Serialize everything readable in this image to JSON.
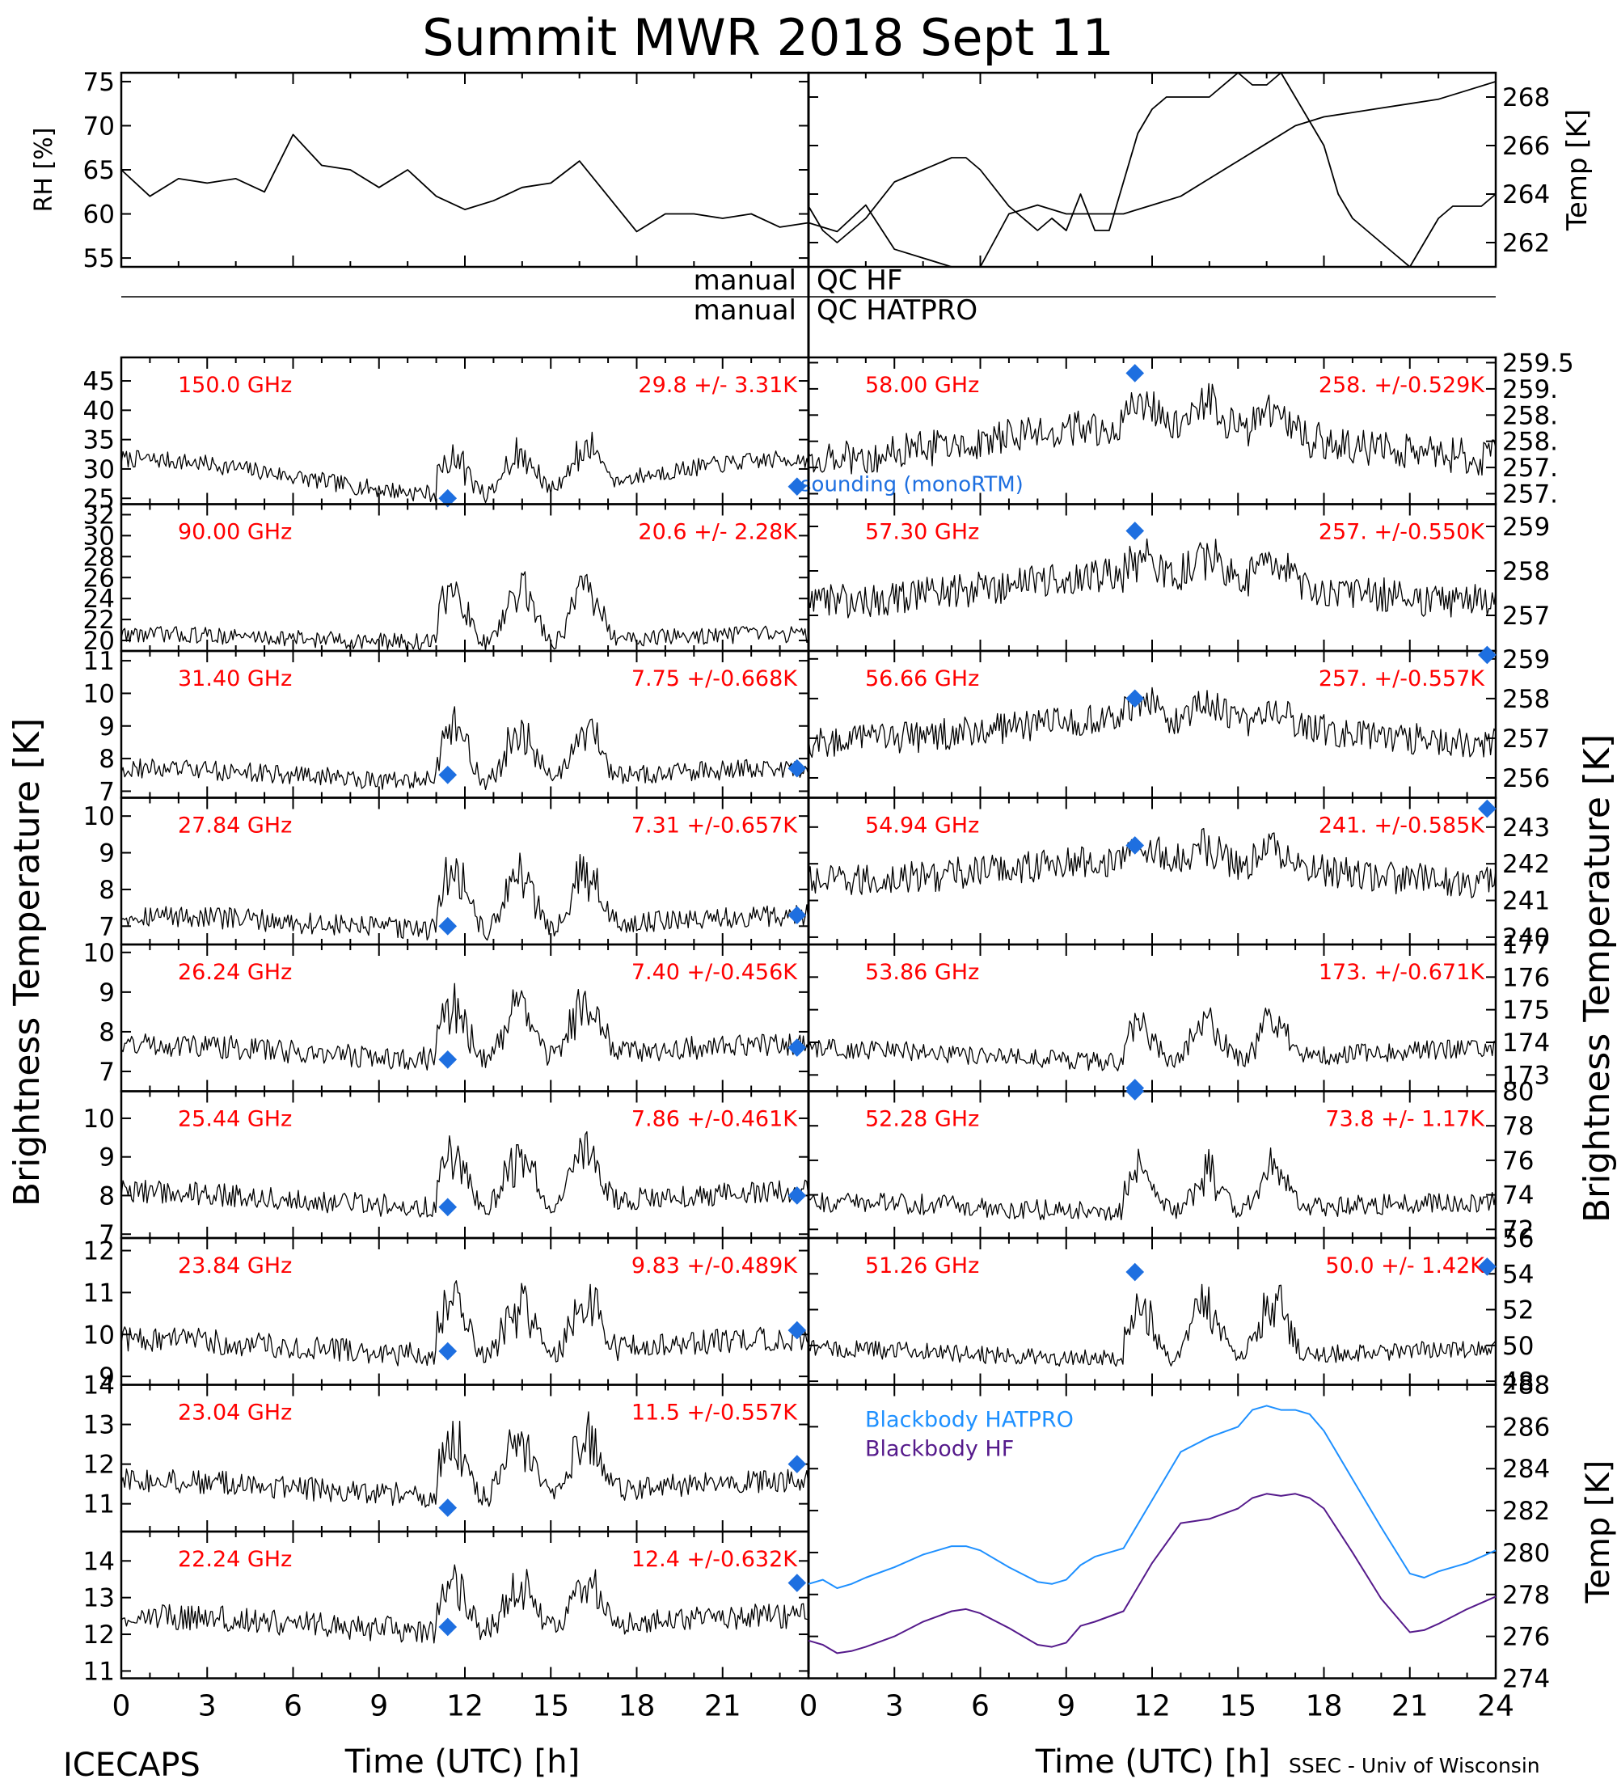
{
  "title": "Summit MWR 2018 Sept 11",
  "footer": {
    "left": "ICECAPS",
    "right": "SSEC - Univ of Wisconsin"
  },
  "x_axis": {
    "label": "Time (UTC) [h]",
    "ticks_left": [
      "0",
      "3",
      "6",
      "9",
      "12",
      "15",
      "18",
      "21"
    ],
    "ticks_right": [
      "0",
      "3",
      "6",
      "9",
      "12",
      "15",
      "18",
      "21",
      "24"
    ]
  },
  "y_label_left": "Brightness Temperature [K]",
  "y_label_right": "Brightness Temperature [K]",
  "qc": {
    "row1_left": "manual",
    "row1_right": "QC HF",
    "row2_left": "manual",
    "row2_right": "QC HATPRO"
  },
  "colors": {
    "data": "#000000",
    "label": "#ff0000",
    "sonde": "#1e6fe0",
    "hatpro": "#1e90ff",
    "hf": "#551a8b"
  },
  "chart_data": [
    {
      "type": "line",
      "panel": "rh",
      "ylabel": "RH [%]",
      "ylim": [
        54,
        76
      ],
      "yticks": [
        55,
        60,
        65,
        70,
        75
      ],
      "xlim": [
        0,
        12
      ],
      "x": [
        0,
        0.5,
        1,
        1.5,
        2,
        2.5,
        3,
        3.5,
        4,
        4.5,
        5,
        5.5,
        6,
        6.5,
        7,
        7.5,
        8,
        8.5,
        9,
        9.5,
        10,
        10.5,
        11,
        11.5,
        12
      ],
      "y": [
        65,
        62,
        64,
        63.5,
        64,
        62.5,
        69,
        65.5,
        65,
        63,
        65,
        62,
        60.5,
        61.5,
        63,
        63.5,
        66,
        62,
        58,
        60,
        60,
        59.5,
        60,
        58.5,
        59
      ]
    },
    {
      "type": "line",
      "panel": "rh",
      "ylabel": "RH [%]",
      "ylim": [
        54,
        76
      ],
      "xlim": [
        12,
        24
      ],
      "x": [
        12,
        12.5,
        13,
        13.5,
        14,
        14.5,
        15,
        15.5,
        16,
        16.5,
        17,
        17.5,
        18,
        18.5,
        19,
        19.5,
        20,
        20.5,
        21,
        21.5,
        22,
        22.5,
        23,
        23.5,
        24
      ],
      "y": [
        59,
        58,
        61,
        56,
        55,
        54,
        54,
        60,
        61,
        60,
        60,
        60,
        61,
        62,
        64,
        66,
        68,
        70,
        71,
        71.5,
        72,
        72.5,
        73,
        74,
        75
      ]
    },
    {
      "type": "line",
      "panel": "temp",
      "ylabel": "Temp [K]",
      "ylim": [
        261,
        269
      ],
      "yticks": [
        262,
        264,
        266,
        268
      ],
      "xlim": [
        0,
        24
      ],
      "x": [
        0,
        0.5,
        1,
        1.5,
        2,
        3,
        4,
        5,
        5.5,
        6,
        7,
        8,
        8.5,
        9,
        9.5,
        10,
        10.5,
        11,
        11.5,
        12,
        12.5,
        13,
        14,
        15,
        15.5,
        16,
        16.5,
        17,
        17.5,
        18,
        18.5,
        19,
        20,
        20.5,
        21,
        21.5,
        22,
        22.5,
        23,
        23.5,
        24
      ],
      "y": [
        263.5,
        262.5,
        262,
        262.5,
        263,
        264.5,
        265,
        265.5,
        265.5,
        265,
        263.5,
        262.5,
        263,
        262.5,
        264,
        262.5,
        262.5,
        264.5,
        266.5,
        267.5,
        268,
        268,
        268,
        269,
        268.5,
        268.5,
        269,
        268,
        267,
        266,
        264,
        263,
        262,
        261.5,
        261,
        262,
        263,
        263.5,
        263.5,
        263.5,
        264
      ]
    },
    {
      "type": "line",
      "panel": "tb",
      "label": "150.0 GHz",
      "stats": "29.8 +/-  3.31K",
      "ylim": [
        24,
        49
      ],
      "yticks": [
        25,
        30,
        35,
        40,
        45
      ],
      "baseline": 28.7,
      "ramp": 3,
      "jump": 6,
      "noise": 1.5,
      "sonde": [
        {
          "x": 11.4,
          "y": 25
        },
        {
          "x": 23.6,
          "y": 27
        }
      ],
      "annotation": "sounding (monoRTM)"
    },
    {
      "type": "line",
      "panel": "tb",
      "label": "90.00 GHz",
      "stats": "20.6 +/-  2.28K",
      "ylim": [
        19,
        33
      ],
      "yticks": [
        20,
        22,
        24,
        26,
        28,
        30,
        32
      ],
      "baseline": 20.2,
      "ramp": 0.4,
      "jump": 4.5,
      "noise": 0.8,
      "sonde": []
    },
    {
      "type": "line",
      "panel": "tb",
      "label": "31.40 GHz",
      "stats": "7.75 +/-0.668K",
      "ylim": [
        6.8,
        11.3
      ],
      "yticks": [
        7,
        8,
        9,
        10,
        11
      ],
      "baseline": 7.5,
      "ramp": 0.2,
      "jump": 1.4,
      "noise": 0.3,
      "sonde": [
        {
          "x": 11.4,
          "y": 7.5
        },
        {
          "x": 23.6,
          "y": 7.7
        }
      ]
    },
    {
      "type": "line",
      "panel": "tb",
      "label": "27.84 GHz",
      "stats": "7.31 +/-0.657K",
      "ylim": [
        6.5,
        10.5
      ],
      "yticks": [
        7,
        8,
        9,
        10
      ],
      "baseline": 7.1,
      "ramp": 0.2,
      "jump": 1.4,
      "noise": 0.3,
      "sonde": [
        {
          "x": 11.4,
          "y": 7
        },
        {
          "x": 23.6,
          "y": 7.3
        }
      ]
    },
    {
      "type": "line",
      "panel": "tb",
      "label": "26.24 GHz",
      "stats": "7.40 +/-0.456K",
      "ylim": [
        6.5,
        10.2
      ],
      "yticks": [
        7,
        8,
        9,
        10
      ],
      "baseline": 7.5,
      "ramp": 0.2,
      "jump": 1.2,
      "noise": 0.3,
      "sonde": [
        {
          "x": 11.4,
          "y": 7.3
        },
        {
          "x": 23.6,
          "y": 7.6
        }
      ]
    },
    {
      "type": "line",
      "panel": "tb",
      "label": "25.44 GHz",
      "stats": "7.86 +/-0.461K",
      "ylim": [
        6.9,
        10.7
      ],
      "yticks": [
        7,
        8,
        9,
        10
      ],
      "baseline": 7.9,
      "ramp": 0.2,
      "jump": 1.2,
      "noise": 0.3,
      "sonde": [
        {
          "x": 11.4,
          "y": 7.7
        },
        {
          "x": 23.6,
          "y": 8
        }
      ]
    },
    {
      "type": "line",
      "panel": "tb",
      "label": "23.84 GHz",
      "stats": "9.83 +/-0.489K",
      "ylim": [
        8.8,
        12.3
      ],
      "yticks": [
        9,
        10,
        11,
        12
      ],
      "baseline": 9.7,
      "ramp": 0.2,
      "jump": 1.1,
      "noise": 0.3,
      "sonde": [
        {
          "x": 11.4,
          "y": 9.6
        },
        {
          "x": 23.6,
          "y": 10.1
        }
      ]
    },
    {
      "type": "line",
      "panel": "tb",
      "label": "23.04 GHz",
      "stats": "11.5 +/-0.557K",
      "ylim": [
        10.3,
        14
      ],
      "yticks": [
        11,
        12,
        13,
        14
      ],
      "baseline": 11.4,
      "ramp": 0.2,
      "jump": 1.2,
      "noise": 0.3,
      "sonde": [
        {
          "x": 11.4,
          "y": 10.9
        },
        {
          "x": 23.6,
          "y": 12
        }
      ]
    },
    {
      "type": "line",
      "panel": "tb",
      "label": "22.24 GHz",
      "stats": "12.4 +/-0.632K",
      "ylim": [
        10.8,
        14.8
      ],
      "yticks": [
        11,
        12,
        13,
        14
      ],
      "baseline": 12.3,
      "ramp": 0.2,
      "jump": 1.2,
      "noise": 0.35,
      "sonde": [
        {
          "x": 11.4,
          "y": 12.2
        },
        {
          "x": 23.6,
          "y": 13.4
        }
      ]
    },
    {
      "type": "line",
      "panel": "tb",
      "label": "58.00 GHz",
      "stats": "258. +/-0.529K",
      "ylim": [
        256.8,
        259.6
      ],
      "yticks": [
        257,
        257.5,
        258,
        258.5,
        259,
        259.5
      ],
      "ytick_labels": [
        "257.",
        "257.",
        "258.",
        "258.",
        "259.",
        "259.5"
      ],
      "baseline": 258,
      "ramp": -0.3,
      "jump": 0.4,
      "noise": 0.35,
      "sonde": [
        {
          "x": 11.4,
          "y": 259.3
        }
      ]
    },
    {
      "type": "line",
      "panel": "tb",
      "label": "57.30 GHz",
      "stats": "257. +/-0.550K",
      "ylim": [
        256.2,
        259.5
      ],
      "yticks": [
        257,
        258,
        259
      ],
      "baseline": 257.6,
      "ramp": -0.3,
      "jump": 0.4,
      "noise": 0.4,
      "sonde": [
        {
          "x": 11.4,
          "y": 258.9
        }
      ]
    },
    {
      "type": "line",
      "panel": "tb",
      "label": "56.66 GHz",
      "stats": "257. +/-0.557K",
      "ylim": [
        255.5,
        259.2
      ],
      "yticks": [
        256,
        257,
        258,
        259
      ],
      "baseline": 257.2,
      "ramp": -0.3,
      "jump": 0.4,
      "noise": 0.4,
      "sonde": [
        {
          "x": 11.4,
          "y": 258
        },
        {
          "x": 23.7,
          "y": 259.1
        }
      ]
    },
    {
      "type": "line",
      "panel": "tb",
      "label": "54.94 GHz",
      "stats": "241. +/-0.585K",
      "ylim": [
        239.8,
        243.8
      ],
      "yticks": [
        240,
        241,
        242,
        243
      ],
      "baseline": 241.8,
      "ramp": -0.3,
      "jump": 0.4,
      "noise": 0.45,
      "sonde": [
        {
          "x": 11.4,
          "y": 242.5
        },
        {
          "x": 23.7,
          "y": 243.5
        }
      ]
    },
    {
      "type": "line",
      "panel": "tb",
      "label": "53.86 GHz",
      "stats": "173. +/-0.671K",
      "ylim": [
        172.5,
        177
      ],
      "yticks": [
        173,
        174,
        175,
        176,
        177
      ],
      "baseline": 173.6,
      "ramp": 0.2,
      "jump": 1.1,
      "noise": 0.3,
      "sonde": [
        {
          "x": 11.4,
          "y": 172.6
        }
      ]
    },
    {
      "type": "line",
      "panel": "tb",
      "label": "52.28 GHz",
      "stats": "73.8 +/-  1.17K",
      "ylim": [
        71.5,
        80
      ],
      "yticks": [
        72,
        74,
        76,
        78,
        80
      ],
      "baseline": 73.3,
      "ramp": 0.3,
      "jump": 2.2,
      "noise": 0.6,
      "sonde": [
        {
          "x": 11.4,
          "y": 80
        }
      ]
    },
    {
      "type": "line",
      "panel": "tb",
      "label": "51.26 GHz",
      "stats": "50.0 +/-  1.42K",
      "ylim": [
        47.8,
        56
      ],
      "yticks": [
        48,
        50,
        52,
        54,
        56
      ],
      "baseline": 49.5,
      "ramp": 0.3,
      "jump": 2.8,
      "noise": 0.5,
      "sonde": [
        {
          "x": 11.4,
          "y": 54.1
        },
        {
          "x": 23.7,
          "y": 54.4
        }
      ]
    },
    {
      "type": "line",
      "panel": "blackbody",
      "ylabel": "Temp [K]",
      "ylim": [
        274,
        288
      ],
      "yticks": [
        274,
        276,
        278,
        280,
        282,
        284,
        286,
        288
      ],
      "xlim": [
        0,
        24
      ],
      "series": [
        {
          "name": "Blackbody HATPRO",
          "x": [
            0,
            0.5,
            1,
            1.5,
            2,
            3,
            4,
            5,
            5.5,
            6,
            7,
            8,
            8.5,
            9,
            9.5,
            10,
            11,
            12,
            13,
            14,
            15,
            15.5,
            16,
            16.5,
            17,
            17.5,
            18,
            19,
            20,
            21,
            21.5,
            22,
            23,
            24
          ],
          "y": [
            278.5,
            278.7,
            278.3,
            278.5,
            278.8,
            279.3,
            279.9,
            280.3,
            280.3,
            280.1,
            279.3,
            278.6,
            278.5,
            278.7,
            279.4,
            279.8,
            280.2,
            282.5,
            284.8,
            285.5,
            286,
            286.8,
            287,
            286.8,
            286.8,
            286.6,
            285.8,
            283.5,
            281.2,
            279,
            278.8,
            279.1,
            279.5,
            280.1
          ]
        },
        {
          "name": "Blackbody HF",
          "x": [
            0,
            0.5,
            1,
            1.5,
            2,
            3,
            4,
            5,
            5.5,
            6,
            7,
            8,
            8.5,
            9,
            9.5,
            10,
            11,
            12,
            13,
            14,
            15,
            15.5,
            16,
            16.5,
            17,
            17.5,
            18,
            19,
            20,
            21,
            21.5,
            22,
            23,
            24
          ],
          "y": [
            275.8,
            275.6,
            275.2,
            275.3,
            275.5,
            276,
            276.7,
            277.2,
            277.3,
            277.1,
            276.4,
            275.6,
            275.5,
            275.7,
            276.5,
            276.7,
            277.2,
            279.5,
            281.4,
            281.6,
            282.1,
            282.6,
            282.8,
            282.7,
            282.8,
            282.6,
            282.1,
            280,
            277.8,
            276.2,
            276.3,
            276.6,
            277.3,
            277.9
          ]
        }
      ]
    }
  ]
}
